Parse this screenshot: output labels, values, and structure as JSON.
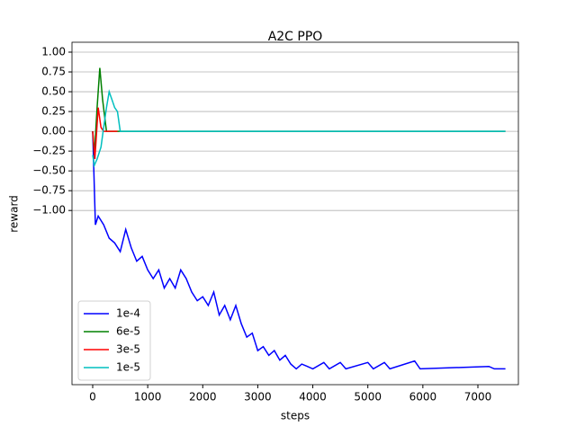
{
  "chart_data": {
    "type": "line",
    "title": "A2C PPO",
    "x_label": "steps",
    "y_label": "reward",
    "xlim": [
      -376,
      7736
    ],
    "ylim": [
      -3.2,
      1.125
    ],
    "xticks": [
      0,
      1000,
      2000,
      3000,
      4000,
      5000,
      6000,
      7000
    ],
    "yticks": [
      {
        "value": 1,
        "label": "1.00"
      },
      {
        "value": 0.75,
        "label": "0.75"
      },
      {
        "value": 0.5,
        "label": "0.50"
      },
      {
        "value": 0.25,
        "label": "0.25"
      },
      {
        "value": 0,
        "label": "0.00"
      },
      {
        "value": -0.25,
        "label": "−0.25"
      },
      {
        "value": -0.5,
        "label": "−0.50"
      },
      {
        "value": -0.75,
        "label": "−0.75"
      },
      {
        "value": -1,
        "label": "−1.00"
      }
    ],
    "grid": true,
    "legend": "lower left",
    "series": [
      {
        "name": "1e-4",
        "color": "#0000ff",
        "x": [
          0,
          50,
          100,
          200,
          300,
          400,
          500,
          600,
          700,
          800,
          900,
          1000,
          1100,
          1200,
          1300,
          1400,
          1500,
          1600,
          1700,
          1800,
          1900,
          2000,
          2100,
          2200,
          2300,
          2400,
          2500,
          2600,
          2700,
          2800,
          2900,
          3000,
          3100,
          3200,
          3300,
          3400,
          3500,
          3600,
          3700,
          3800,
          3900,
          4000,
          4200,
          4300,
          4500,
          4600,
          5000,
          5100,
          5300,
          5400,
          5850,
          5950,
          7200,
          7300,
          7500
        ],
        "values": [
          0,
          -1.18,
          -1.07,
          -1.18,
          -1.35,
          -1.41,
          -1.52,
          -1.24,
          -1.47,
          -1.64,
          -1.58,
          -1.75,
          -1.86,
          -1.75,
          -1.98,
          -1.86,
          -1.98,
          -1.75,
          -1.86,
          -2.03,
          -2.14,
          -2.09,
          -2.2,
          -2.03,
          -2.32,
          -2.2,
          -2.38,
          -2.2,
          -2.43,
          -2.6,
          -2.55,
          -2.77,
          -2.72,
          -2.83,
          -2.77,
          -2.89,
          -2.83,
          -2.94,
          -3.0,
          -2.94,
          -2.97,
          -3.0,
          -2.92,
          -3.0,
          -2.92,
          -3.0,
          -2.92,
          -3.0,
          -2.92,
          -3.0,
          -2.9,
          -3.0,
          -2.97,
          -3.0,
          -3.0
        ]
      },
      {
        "name": "6e-5",
        "color": "#008000",
        "x": [
          0,
          30,
          80,
          130,
          180,
          250,
          7500
        ],
        "values": [
          0,
          -0.3,
          0.3,
          0.8,
          0.4,
          0,
          0
        ]
      },
      {
        "name": "3e-5",
        "color": "#ff0000",
        "x": [
          0,
          40,
          100,
          150,
          200,
          300,
          450
        ],
        "values": [
          0,
          -0.35,
          0.3,
          0.05,
          0,
          0,
          0
        ]
      },
      {
        "name": "1e-5",
        "color": "#00bfbf",
        "x": [
          0,
          30,
          80,
          150,
          200,
          250,
          300,
          350,
          400,
          450,
          500,
          7500
        ],
        "values": [
          -0.3,
          -0.43,
          -0.35,
          -0.2,
          0.05,
          0.3,
          0.5,
          0.4,
          0.3,
          0.25,
          0,
          0
        ]
      }
    ]
  }
}
